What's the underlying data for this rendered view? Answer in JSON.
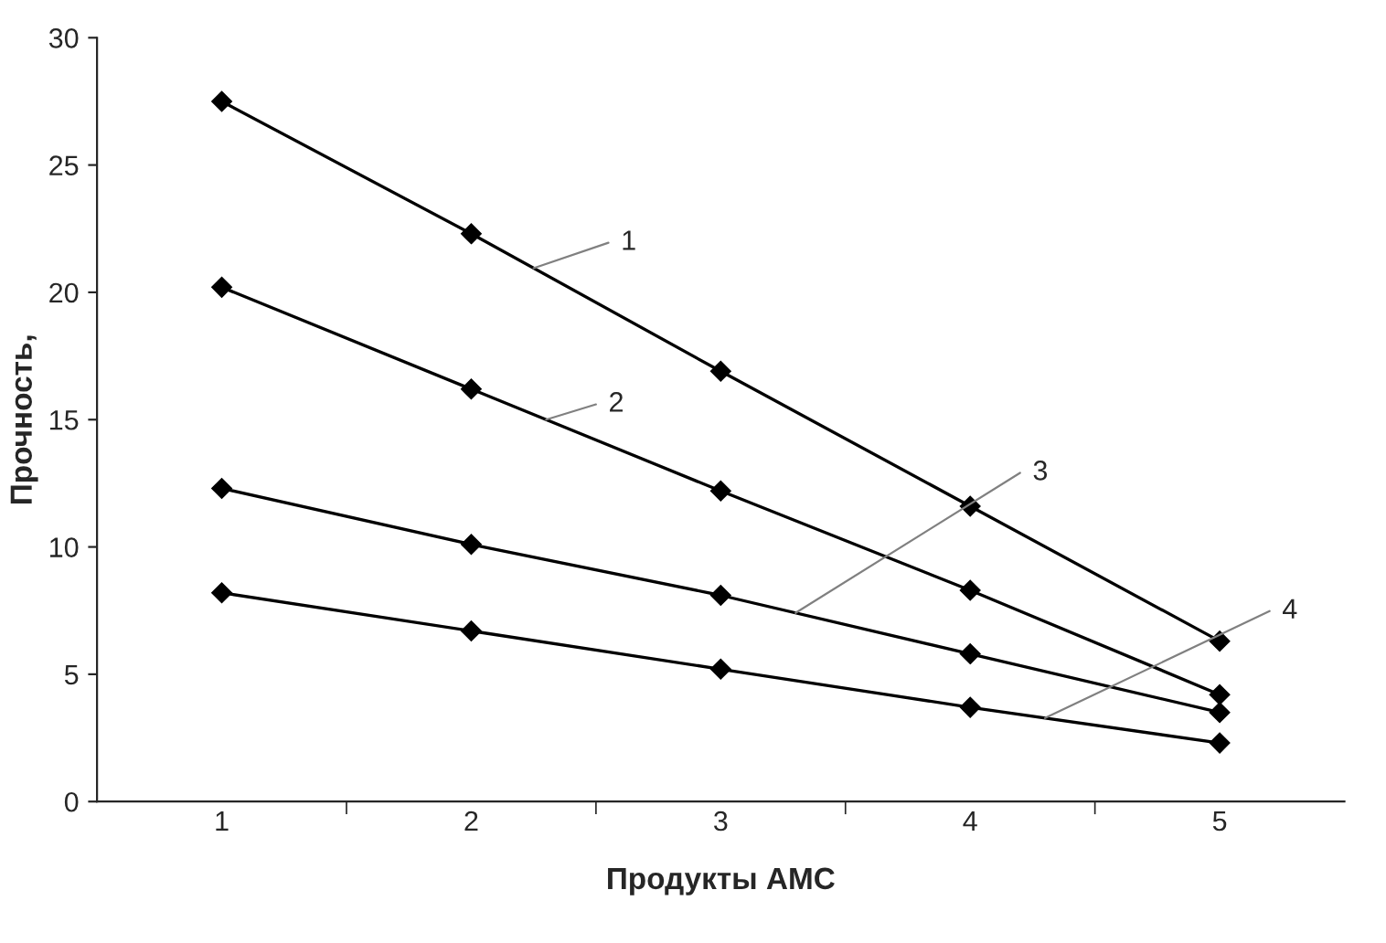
{
  "chart_data": {
    "type": "line",
    "xlabel": "Продукты АМС",
    "ylabel": "Прочность,",
    "categories": [
      "1",
      "2",
      "3",
      "4",
      "5"
    ],
    "series": [
      {
        "name": "1",
        "color": "#000000",
        "values": [
          27.5,
          22.3,
          16.9,
          11.6,
          6.3
        ]
      },
      {
        "name": "2",
        "color": "#000000",
        "values": [
          20.2,
          16.2,
          12.2,
          8.3,
          4.2
        ]
      },
      {
        "name": "3",
        "color": "#000000",
        "values": [
          12.3,
          10.1,
          8.1,
          5.8,
          3.5
        ]
      },
      {
        "name": "4",
        "color": "#000000",
        "values": [
          8.2,
          6.7,
          5.2,
          3.7,
          2.3
        ]
      }
    ],
    "ylim": [
      0,
      30
    ],
    "yticks": [
      0,
      5,
      10,
      15,
      20,
      25,
      30
    ],
    "grid": false,
    "legend": false,
    "marker": "diamond",
    "line_style": "solid"
  }
}
